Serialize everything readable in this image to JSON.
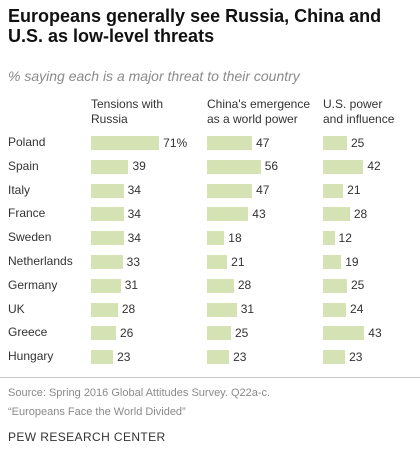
{
  "title": "Europeans generally see Russia, China and U.S. as low-level threats",
  "subtitle": "% saying each is a major threat to their country",
  "chart_data": {
    "type": "bar",
    "categories": [
      "Poland",
      "Spain",
      "Italy",
      "France",
      "Sweden",
      "Netherlands",
      "Germany",
      "UK",
      "Greece",
      "Hungary"
    ],
    "series": [
      {
        "name": "Tensions with Russia",
        "values": [
          71,
          39,
          34,
          34,
          34,
          33,
          31,
          28,
          26,
          23
        ]
      },
      {
        "name": "China's emergence as a world power",
        "values": [
          47,
          56,
          47,
          43,
          18,
          21,
          28,
          31,
          25,
          23
        ]
      },
      {
        "name": "U.S. power and influence",
        "values": [
          25,
          42,
          21,
          28,
          12,
          19,
          25,
          24,
          43,
          23
        ]
      }
    ],
    "series_headers": [
      [
        "Tensions with",
        "Russia"
      ],
      [
        "China's emergence",
        "as a world power"
      ],
      [
        "U.S. power",
        "and influence"
      ]
    ],
    "value_suffix_first": "%",
    "bar_color": "#d5e2b3"
  },
  "source": "Source: Spring 2016 Global Attitudes Survey. Q22a-c.",
  "report": "“Europeans Face the World Divided”",
  "brand": "PEW RESEARCH CENTER"
}
